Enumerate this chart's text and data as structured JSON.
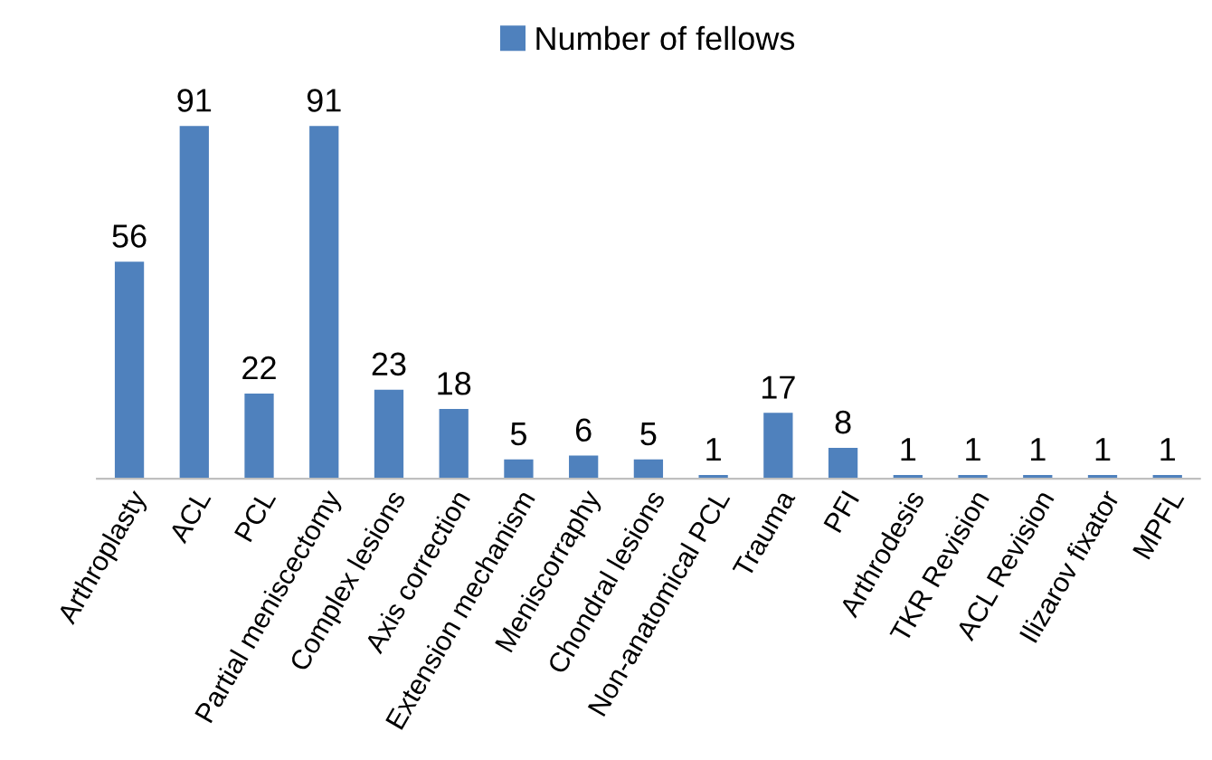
{
  "chart_data": {
    "type": "bar",
    "categories": [
      "Arthroplasty",
      "ACL",
      "PCL",
      "Partial meniscectomy",
      "Complex lesions",
      "Axis correction",
      "Extension mechanism",
      "Meniscorraphy",
      "Chondral lesions",
      "Non-anatomical PCL",
      "Trauma",
      "PFI",
      "Arthrodesis",
      "TKR Revision",
      "ACL Revision",
      "Ilizarov fixator",
      "MPFL"
    ],
    "series": [
      {
        "name": "Number of fellows",
        "color": "#4f81bd",
        "values": [
          56,
          91,
          22,
          91,
          23,
          18,
          5,
          6,
          5,
          1,
          17,
          8,
          1,
          1,
          1,
          1,
          1
        ]
      }
    ],
    "data_labels": true,
    "legend": "top",
    "tick_labels": "x",
    "grid": false
  }
}
